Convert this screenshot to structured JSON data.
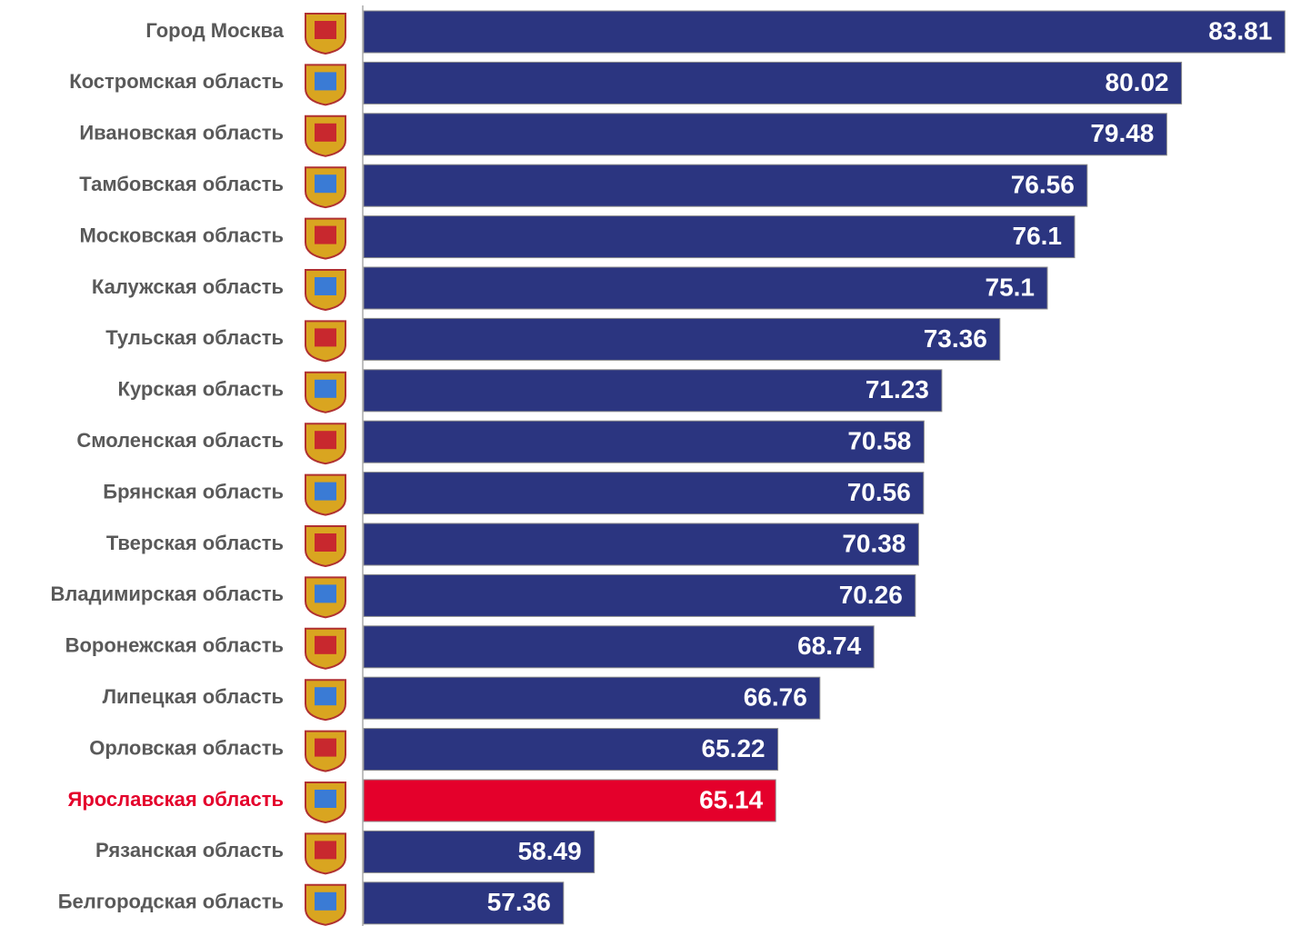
{
  "chart_data": {
    "type": "bar",
    "orientation": "horizontal",
    "categories": [
      "Город Москва",
      "Костромская область",
      "Ивановская область",
      "Тамбовская область",
      "Московская область",
      "Калужская область",
      "Тульская область",
      "Курская область",
      "Смоленская область",
      "Брянская область",
      "Тверская область",
      "Владимирская область",
      "Воронежская область",
      "Липецкая область",
      "Орловская область",
      "Ярославская область",
      "Рязанская область",
      "Белгородская область"
    ],
    "values": [
      83.81,
      80.02,
      79.48,
      76.56,
      76.1,
      75.1,
      73.36,
      71.23,
      70.58,
      70.56,
      70.38,
      70.26,
      68.74,
      66.76,
      65.22,
      65.14,
      58.49,
      57.36
    ],
    "bar_colors": [
      "#2b3580",
      "#2b3580",
      "#2b3580",
      "#2b3580",
      "#2b3580",
      "#2b3580",
      "#2b3580",
      "#2b3580",
      "#2b3580",
      "#2b3580",
      "#2b3580",
      "#2b3580",
      "#2b3580",
      "#2b3580",
      "#2b3580",
      "#e4002b",
      "#2b3580",
      "#2b3580"
    ],
    "label_colors": [
      "#595959",
      "#595959",
      "#595959",
      "#595959",
      "#595959",
      "#595959",
      "#595959",
      "#595959",
      "#595959",
      "#595959",
      "#595959",
      "#595959",
      "#595959",
      "#595959",
      "#595959",
      "#e4002b",
      "#595959",
      "#595959"
    ],
    "xlim": [
      50,
      84
    ]
  }
}
